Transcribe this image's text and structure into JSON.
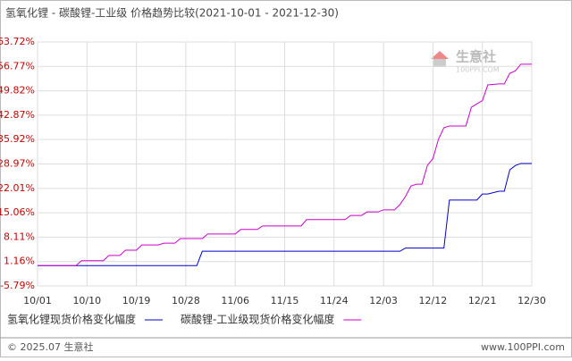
{
  "chart_data": {
    "type": "line",
    "title": "氢氧化锂 - 碳酸锂-工业级 价格趋势比较(2021-10-01 - 2021-12-30)",
    "watermark": "生意社",
    "watermark_sub": "100PPI.COM",
    "footer_left": "© 2025.07 生意社",
    "footer_right": "www.100PPI.com",
    "grid": true,
    "legend": "bottom",
    "x": [
      "2021-10-01",
      "2021-10-08",
      "2021-10-09",
      "2021-10-13",
      "2021-10-14",
      "2021-10-16",
      "2021-10-17",
      "2021-10-19",
      "2021-10-20",
      "2021-10-23",
      "2021-10-24",
      "2021-10-26",
      "2021-10-27",
      "2021-10-30",
      "2021-10-31",
      "2021-11-01",
      "2021-11-06",
      "2021-11-07",
      "2021-11-10",
      "2021-11-11",
      "2021-11-18",
      "2021-11-19",
      "2021-11-26",
      "2021-11-27",
      "2021-11-29",
      "2021-11-30",
      "2021-12-02",
      "2021-12-03",
      "2021-12-05",
      "2021-12-06",
      "2021-12-07",
      "2021-12-08",
      "2021-12-09",
      "2021-12-10",
      "2021-12-11",
      "2021-12-12",
      "2021-12-13",
      "2021-12-14",
      "2021-12-15",
      "2021-12-18",
      "2021-12-19",
      "2021-12-20",
      "2021-12-21",
      "2021-12-22",
      "2021-12-24",
      "2021-12-25",
      "2021-12-26",
      "2021-12-27",
      "2021-12-28",
      "2021-12-30"
    ],
    "series": [
      {
        "name": "氢氧化锂现货价格变化幅度",
        "color": "#0000cc",
        "values": [
          0,
          0,
          0,
          0,
          0,
          0,
          0,
          0,
          0,
          0,
          0,
          0,
          0,
          0,
          4.1,
          4.1,
          4.1,
          4.1,
          4.1,
          4.1,
          4.1,
          4.1,
          4.1,
          4.1,
          4.1,
          4.1,
          4.1,
          4.1,
          4.1,
          4.1,
          5.0,
          5.0,
          5.0,
          5.0,
          5.0,
          5.0,
          5.0,
          5.0,
          18.7,
          18.7,
          18.7,
          18.7,
          20.4,
          20.4,
          21.2,
          21.2,
          27.3,
          28.5,
          29.1,
          29.1
        ]
      },
      {
        "name": "碳酸锂-工业级现货价格变化幅度",
        "color": "#cc00cc",
        "values": [
          0,
          0,
          1.4,
          1.4,
          2.9,
          2.9,
          4.4,
          4.4,
          5.9,
          5.9,
          6.4,
          6.4,
          7.7,
          7.7,
          7.7,
          9.0,
          9.0,
          10.3,
          10.3,
          11.3,
          11.3,
          13.1,
          13.1,
          14.3,
          14.3,
          15.3,
          15.3,
          15.9,
          15.9,
          17.4,
          19.7,
          22.7,
          23.2,
          23.2,
          28.6,
          30.5,
          36.0,
          39.3,
          39.8,
          39.8,
          45.1,
          46.1,
          47.0,
          51.5,
          51.8,
          51.8,
          54.8,
          55.5,
          57.4,
          57.4
        ]
      }
    ],
    "xlim": [
      "2021-10-01",
      "2021-12-30"
    ],
    "xticks": [
      {
        "value": "2021-10-01",
        "label": "10/01"
      },
      {
        "value": "2021-10-10",
        "label": "10/10"
      },
      {
        "value": "2021-10-19",
        "label": "10/19"
      },
      {
        "value": "2021-10-28",
        "label": "10/28"
      },
      {
        "value": "2021-11-06",
        "label": "11/06"
      },
      {
        "value": "2021-11-15",
        "label": "11/15"
      },
      {
        "value": "2021-11-24",
        "label": "11/24"
      },
      {
        "value": "2021-12-03",
        "label": "12/03"
      },
      {
        "value": "2021-12-12",
        "label": "12/12"
      },
      {
        "value": "2021-12-21",
        "label": "12/21"
      },
      {
        "value": "2021-12-30",
        "label": "12/30"
      }
    ],
    "ylim": [
      -5.79,
      63.72
    ],
    "yticks": [
      {
        "value": -5.79,
        "label": "-5.79%"
      },
      {
        "value": 1.16,
        "label": "1.16%"
      },
      {
        "value": 8.11,
        "label": "8.11%"
      },
      {
        "value": 15.06,
        "label": "15.06%"
      },
      {
        "value": 22.01,
        "label": "22.01%"
      },
      {
        "value": 28.97,
        "label": "28.97%"
      },
      {
        "value": 35.92,
        "label": "35.92%"
      },
      {
        "value": 42.87,
        "label": "42.87%"
      },
      {
        "value": 49.82,
        "label": "49.82%"
      },
      {
        "value": 56.77,
        "label": "56.77%"
      },
      {
        "value": 63.72,
        "label": "63.72%"
      }
    ]
  }
}
